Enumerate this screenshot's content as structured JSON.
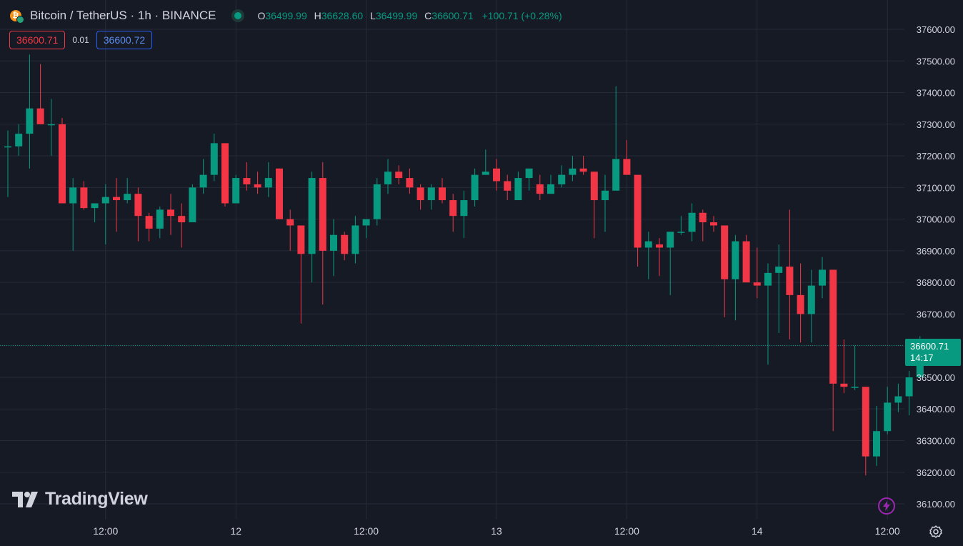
{
  "header": {
    "symbol_title": "Bitcoin / TetherUS · 1h · BINANCE",
    "ohlc": {
      "o_label": "O",
      "o": "36499.99",
      "h_label": "H",
      "h": "36628.60",
      "l_label": "L",
      "l": "36499.99",
      "c_label": "C",
      "c": "36600.71",
      "change": "+100.71 (+0.28%)"
    }
  },
  "quote_bar": {
    "sell": "36600.71",
    "spread": "0.01",
    "buy": "36600.72"
  },
  "last_price": {
    "price": "36600.71",
    "countdown": "14:17"
  },
  "brand": {
    "name": "TradingView"
  },
  "colors": {
    "up": "#089981",
    "down": "#f23645",
    "grid": "#262b38",
    "text": "#d1d4dc"
  },
  "icons": {
    "settings": "gear-icon",
    "alert": "lightning-icon",
    "symbol": "bitcoin-icon"
  },
  "chart_data": {
    "type": "candlestick",
    "y_ticks": [
      "37600.00",
      "37500.00",
      "37400.00",
      "37300.00",
      "37200.00",
      "37100.00",
      "37000.00",
      "36900.00",
      "36800.00",
      "36700.00",
      "36600.00",
      "36500.00",
      "36400.00",
      "36300.00",
      "36200.00",
      "36100.00"
    ],
    "x_ticks": [
      {
        "label": "12:00",
        "index": 9
      },
      {
        "label": "12",
        "index": 21
      },
      {
        "label": "12:00",
        "index": 33
      },
      {
        "label": "13",
        "index": 45
      },
      {
        "label": "12:00",
        "index": 57
      },
      {
        "label": "14",
        "index": 69
      },
      {
        "label": "12:00",
        "index": 81
      }
    ],
    "ylim": [
      36083,
      37648
    ],
    "candles": [
      [
        37230,
        37280,
        37070,
        37230
      ],
      [
        37230,
        37300,
        37200,
        37270
      ],
      [
        37270,
        37520,
        37160,
        37350
      ],
      [
        37350,
        37490,
        37300,
        37300
      ],
      [
        37300,
        37380,
        37200,
        37300
      ],
      [
        37300,
        37320,
        37050,
        37050
      ],
      [
        37050,
        37130,
        36900,
        37100
      ],
      [
        37100,
        37120,
        37030,
        37035
      ],
      [
        37035,
        37050,
        36990,
        37050
      ],
      [
        37050,
        37110,
        36920,
        37070
      ],
      [
        37070,
        37130,
        36960,
        37060
      ],
      [
        37060,
        37130,
        37050,
        37080
      ],
      [
        37080,
        37100,
        36930,
        37010
      ],
      [
        37010,
        37020,
        36930,
        36970
      ],
      [
        36970,
        37040,
        36940,
        37030
      ],
      [
        37030,
        37080,
        36950,
        37010
      ],
      [
        37010,
        37050,
        36910,
        36990
      ],
      [
        36990,
        37110,
        36990,
        37100
      ],
      [
        37100,
        37190,
        37080,
        37140
      ],
      [
        37140,
        37270,
        37120,
        37240
      ],
      [
        37240,
        37240,
        37040,
        37050
      ],
      [
        37050,
        37140,
        37050,
        37130
      ],
      [
        37130,
        37180,
        37090,
        37110
      ],
      [
        37110,
        37150,
        37080,
        37100
      ],
      [
        37100,
        37180,
        37070,
        37130
      ],
      [
        37160,
        37160,
        37000,
        37000
      ],
      [
        37000,
        37030,
        36900,
        36980
      ],
      [
        36980,
        36980,
        36670,
        36890
      ],
      [
        36890,
        37150,
        36800,
        37130
      ],
      [
        37130,
        37180,
        36730,
        36900
      ],
      [
        36900,
        37000,
        36820,
        36950
      ],
      [
        36950,
        36960,
        36870,
        36890
      ],
      [
        36890,
        37010,
        36860,
        36980
      ],
      [
        36980,
        37000,
        36940,
        37000
      ],
      [
        37000,
        37130,
        36980,
        37110
      ],
      [
        37110,
        37190,
        37080,
        37150
      ],
      [
        37150,
        37170,
        37110,
        37130
      ],
      [
        37130,
        37160,
        37080,
        37100
      ],
      [
        37100,
        37110,
        37030,
        37060
      ],
      [
        37060,
        37110,
        37030,
        37100
      ],
      [
        37100,
        37130,
        37050,
        37060
      ],
      [
        37060,
        37080,
        36960,
        37010
      ],
      [
        37010,
        37090,
        36940,
        37060
      ],
      [
        37060,
        37160,
        37040,
        37140
      ],
      [
        37140,
        37220,
        37140,
        37150
      ],
      [
        37160,
        37190,
        37090,
        37120
      ],
      [
        37120,
        37140,
        37060,
        37090
      ],
      [
        37060,
        37150,
        37060,
        37130
      ],
      [
        37130,
        37160,
        37090,
        37160
      ],
      [
        37110,
        37140,
        37060,
        37080
      ],
      [
        37080,
        37140,
        37080,
        37110
      ],
      [
        37110,
        37170,
        37100,
        37140
      ],
      [
        37140,
        37200,
        37120,
        37160
      ],
      [
        37160,
        37200,
        37140,
        37150
      ],
      [
        37150,
        37150,
        36940,
        37060
      ],
      [
        37060,
        37140,
        36960,
        37090
      ],
      [
        37090,
        37420,
        37090,
        37190
      ],
      [
        37190,
        37250,
        37140,
        37140
      ],
      [
        37140,
        37140,
        36850,
        36910
      ],
      [
        36910,
        36960,
        36810,
        36930
      ],
      [
        36920,
        36940,
        36820,
        36910
      ],
      [
        36910,
        36960,
        36760,
        36960
      ],
      [
        36960,
        37010,
        36950,
        36960
      ],
      [
        36960,
        37050,
        36930,
        37020
      ],
      [
        37020,
        37030,
        36930,
        36990
      ],
      [
        36990,
        37010,
        36960,
        36980
      ],
      [
        36980,
        36980,
        36690,
        36810
      ],
      [
        36810,
        36950,
        36680,
        36930
      ],
      [
        36930,
        36950,
        36800,
        36800
      ],
      [
        36800,
        36910,
        36750,
        36790
      ],
      [
        36790,
        36860,
        36540,
        36830
      ],
      [
        36830,
        36920,
        36640,
        36850
      ],
      [
        36850,
        37030,
        36620,
        36760
      ],
      [
        36760,
        36860,
        36610,
        36700
      ],
      [
        36700,
        36840,
        36610,
        36790
      ],
      [
        36790,
        36880,
        36750,
        36840
      ],
      [
        36840,
        36840,
        36330,
        36480
      ],
      [
        36480,
        36620,
        36450,
        36470
      ],
      [
        36470,
        36600,
        36460,
        36470
      ],
      [
        36470,
        36470,
        36190,
        36250
      ],
      [
        36250,
        36410,
        36220,
        36330
      ],
      [
        36330,
        36470,
        36320,
        36420
      ],
      [
        36420,
        36480,
        36390,
        36440
      ],
      [
        36440,
        36520,
        36380,
        36500
      ],
      [
        36500,
        36630,
        36500,
        36600
      ]
    ]
  }
}
